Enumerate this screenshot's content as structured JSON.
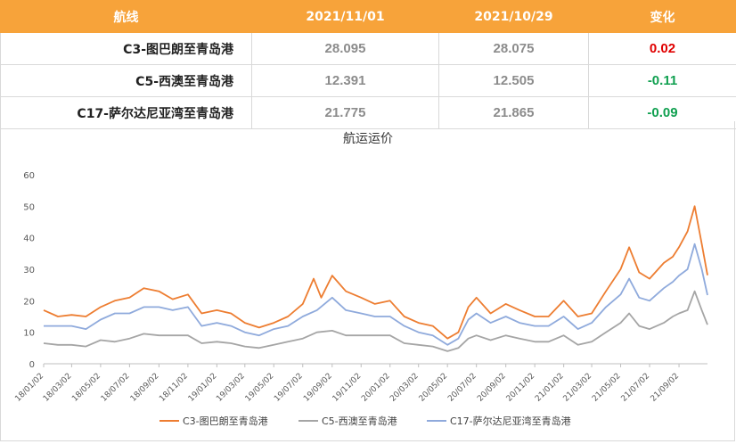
{
  "table": {
    "headers": [
      "航线",
      "2021/11/01",
      "2021/10/29",
      "变化"
    ],
    "rows": [
      {
        "route": "C3-图巴朗至青岛港",
        "v1": "28.095",
        "v2": "28.075",
        "change": "0.02",
        "trend": "up"
      },
      {
        "route": "C5-西澳至青岛港",
        "v1": "12.391",
        "v2": "12.505",
        "change": "-0.11",
        "trend": "down"
      },
      {
        "route": "C17-萨尔达尼亚湾至青岛港",
        "v1": "21.775",
        "v2": "21.865",
        "change": "-0.09",
        "trend": "down"
      }
    ],
    "colors": {
      "header_bg": "#f7a33a",
      "up": "#e00000",
      "down": "#10a050"
    }
  },
  "chart_data": {
    "type": "line",
    "title": "航运运价",
    "ylim": [
      0,
      60
    ],
    "yticks": [
      0,
      10,
      20,
      30,
      40,
      50,
      60
    ],
    "grid": false,
    "legend_position": "bottom",
    "x_start": "18/01/02",
    "x_end": "21/11/01",
    "x_tick_labels": [
      "18/01/02",
      "18/03/02",
      "18/05/02",
      "18/07/02",
      "18/09/02",
      "18/11/02",
      "19/01/02",
      "19/03/02",
      "19/05/02",
      "19/07/02",
      "19/09/02",
      "19/11/02",
      "20/01/02",
      "20/03/02",
      "20/05/02",
      "20/07/02",
      "20/09/02",
      "20/11/02",
      "21/01/02",
      "21/03/02",
      "21/05/02",
      "21/07/02",
      "21/09/02"
    ],
    "series": [
      {
        "name": "C3-图巴朗至青岛港",
        "color": "#ed7d31",
        "points": [
          [
            "18/01/02",
            17
          ],
          [
            "18/02/01",
            15
          ],
          [
            "18/03/02",
            15.5
          ],
          [
            "18/04/01",
            15
          ],
          [
            "18/05/02",
            18
          ],
          [
            "18/06/01",
            20
          ],
          [
            "18/07/02",
            21
          ],
          [
            "18/08/01",
            24
          ],
          [
            "18/09/02",
            23
          ],
          [
            "18/10/01",
            20.5
          ],
          [
            "18/11/02",
            22
          ],
          [
            "18/12/01",
            16
          ],
          [
            "19/01/02",
            17
          ],
          [
            "19/02/01",
            16
          ],
          [
            "19/03/02",
            13
          ],
          [
            "19/04/01",
            11.5
          ],
          [
            "19/05/02",
            13
          ],
          [
            "19/06/01",
            15
          ],
          [
            "19/07/02",
            19
          ],
          [
            "19/07/25",
            27
          ],
          [
            "19/08/10",
            21
          ],
          [
            "19/09/02",
            28
          ],
          [
            "19/10/01",
            23
          ],
          [
            "19/11/02",
            21
          ],
          [
            "19/12/01",
            19
          ],
          [
            "20/01/02",
            20
          ],
          [
            "20/02/01",
            15
          ],
          [
            "20/03/02",
            13
          ],
          [
            "20/04/01",
            12
          ],
          [
            "20/05/02",
            8
          ],
          [
            "20/05/25",
            10
          ],
          [
            "20/06/15",
            18
          ],
          [
            "20/07/02",
            21
          ],
          [
            "20/08/01",
            16
          ],
          [
            "20/09/02",
            19
          ],
          [
            "20/10/01",
            17
          ],
          [
            "20/11/02",
            15
          ],
          [
            "20/12/01",
            15
          ],
          [
            "21/01/02",
            20
          ],
          [
            "21/02/01",
            15
          ],
          [
            "21/03/02",
            16
          ],
          [
            "21/04/01",
            23
          ],
          [
            "21/05/02",
            30
          ],
          [
            "21/05/20",
            37
          ],
          [
            "21/06/10",
            29
          ],
          [
            "21/07/02",
            27
          ],
          [
            "21/08/01",
            32
          ],
          [
            "21/08/20",
            34
          ],
          [
            "21/09/02",
            37
          ],
          [
            "21/09/20",
            42
          ],
          [
            "21/10/05",
            50
          ],
          [
            "21/10/20",
            38
          ],
          [
            "21/11/01",
            28.1
          ]
        ]
      },
      {
        "name": "C5-西澳至青岛港",
        "color": "#a5a5a5",
        "points": [
          [
            "18/01/02",
            6.5
          ],
          [
            "18/02/01",
            6
          ],
          [
            "18/03/02",
            6
          ],
          [
            "18/04/01",
            5.5
          ],
          [
            "18/05/02",
            7.5
          ],
          [
            "18/06/01",
            7
          ],
          [
            "18/07/02",
            8
          ],
          [
            "18/08/01",
            9.5
          ],
          [
            "18/09/02",
            9
          ],
          [
            "18/10/01",
            9
          ],
          [
            "18/11/02",
            9
          ],
          [
            "18/12/01",
            6.5
          ],
          [
            "19/01/02",
            7
          ],
          [
            "19/02/01",
            6.5
          ],
          [
            "19/03/02",
            5.5
          ],
          [
            "19/04/01",
            5
          ],
          [
            "19/05/02",
            6
          ],
          [
            "19/06/01",
            7
          ],
          [
            "19/07/02",
            8
          ],
          [
            "19/08/01",
            10
          ],
          [
            "19/09/02",
            10.5
          ],
          [
            "19/10/01",
            9
          ],
          [
            "19/11/02",
            9
          ],
          [
            "19/12/01",
            9
          ],
          [
            "20/01/02",
            9
          ],
          [
            "20/02/01",
            6.5
          ],
          [
            "20/03/02",
            6
          ],
          [
            "20/04/01",
            5.5
          ],
          [
            "20/05/02",
            4
          ],
          [
            "20/05/25",
            5
          ],
          [
            "20/06/15",
            8
          ],
          [
            "20/07/02",
            9
          ],
          [
            "20/08/01",
            7.5
          ],
          [
            "20/09/02",
            9
          ],
          [
            "20/10/01",
            8
          ],
          [
            "20/11/02",
            7
          ],
          [
            "20/12/01",
            7
          ],
          [
            "21/01/02",
            9
          ],
          [
            "21/02/01",
            6
          ],
          [
            "21/03/02",
            7
          ],
          [
            "21/04/01",
            10
          ],
          [
            "21/05/02",
            13
          ],
          [
            "21/05/20",
            16
          ],
          [
            "21/06/10",
            12
          ],
          [
            "21/07/02",
            11
          ],
          [
            "21/08/01",
            13
          ],
          [
            "21/08/20",
            15
          ],
          [
            "21/09/02",
            16
          ],
          [
            "21/09/20",
            17
          ],
          [
            "21/10/05",
            23
          ],
          [
            "21/10/20",
            17
          ],
          [
            "21/11/01",
            12.4
          ]
        ]
      },
      {
        "name": "C17-萨尔达尼亚湾至青岛港",
        "color": "#8faadc",
        "points": [
          [
            "18/01/02",
            12
          ],
          [
            "18/02/01",
            12
          ],
          [
            "18/03/02",
            12
          ],
          [
            "18/04/01",
            11
          ],
          [
            "18/05/02",
            14
          ],
          [
            "18/06/01",
            16
          ],
          [
            "18/07/02",
            16
          ],
          [
            "18/08/01",
            18
          ],
          [
            "18/09/02",
            18
          ],
          [
            "18/10/01",
            17
          ],
          [
            "18/11/02",
            18
          ],
          [
            "18/12/01",
            12
          ],
          [
            "19/01/02",
            13
          ],
          [
            "19/02/01",
            12
          ],
          [
            "19/03/02",
            10
          ],
          [
            "19/04/01",
            9
          ],
          [
            "19/05/02",
            11
          ],
          [
            "19/06/01",
            12
          ],
          [
            "19/07/02",
            15
          ],
          [
            "19/08/01",
            17
          ],
          [
            "19/09/02",
            21
          ],
          [
            "19/10/01",
            17
          ],
          [
            "19/11/02",
            16
          ],
          [
            "19/12/01",
            15
          ],
          [
            "20/01/02",
            15
          ],
          [
            "20/02/01",
            12
          ],
          [
            "20/03/02",
            10
          ],
          [
            "20/04/01",
            9
          ],
          [
            "20/05/02",
            6
          ],
          [
            "20/05/25",
            8
          ],
          [
            "20/06/15",
            14
          ],
          [
            "20/07/02",
            16
          ],
          [
            "20/08/01",
            13
          ],
          [
            "20/09/02",
            15
          ],
          [
            "20/10/01",
            13
          ],
          [
            "20/11/02",
            12
          ],
          [
            "20/12/01",
            12
          ],
          [
            "21/01/02",
            15
          ],
          [
            "21/02/01",
            11
          ],
          [
            "21/03/02",
            13
          ],
          [
            "21/04/01",
            18
          ],
          [
            "21/05/02",
            22
          ],
          [
            "21/05/20",
            27
          ],
          [
            "21/06/10",
            21
          ],
          [
            "21/07/02",
            20
          ],
          [
            "21/08/01",
            24
          ],
          [
            "21/08/20",
            26
          ],
          [
            "21/09/02",
            28
          ],
          [
            "21/09/20",
            30
          ],
          [
            "21/10/05",
            38
          ],
          [
            "21/10/20",
            30
          ],
          [
            "21/11/01",
            21.8
          ]
        ]
      }
    ]
  }
}
